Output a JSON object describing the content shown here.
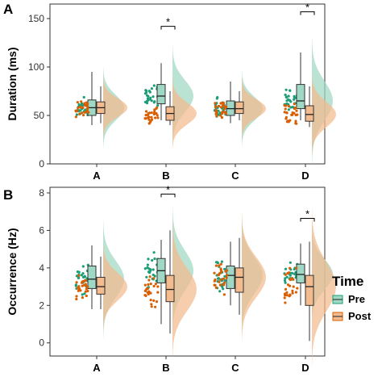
{
  "figure": {
    "legend": {
      "title": "Time",
      "items": [
        {
          "label": "Pre",
          "color": "#1b9e77"
        },
        {
          "label": "Post",
          "color": "#d95f02"
        }
      ]
    }
  },
  "chart_data": [
    {
      "panel": "A",
      "type": "raincloud",
      "ylabel": "Duration (ms)",
      "categories": [
        "A",
        "B",
        "C",
        "D"
      ],
      "yticks": [
        0,
        50,
        100,
        150
      ],
      "ylim": [
        0,
        165
      ],
      "grid": false,
      "significance": [
        {
          "category": "B",
          "label": "*",
          "y": 147
        },
        {
          "category": "D",
          "label": "*",
          "y": 162
        }
      ],
      "series": [
        {
          "name": "Pre",
          "box": [
            {
              "category": "A",
              "min": 40,
              "q1": 50,
              "median": 58,
              "q3": 66,
              "max": 95
            },
            {
              "category": "B",
              "min": 45,
              "q1": 62,
              "median": 70,
              "q3": 82,
              "max": 104
            },
            {
              "category": "C",
              "min": 42,
              "q1": 50,
              "median": 57,
              "q3": 65,
              "max": 85
            },
            {
              "category": "D",
              "min": 45,
              "q1": 57,
              "median": 65,
              "q3": 82,
              "max": 115
            }
          ]
        },
        {
          "name": "Post",
          "box": [
            {
              "category": "A",
              "min": 42,
              "q1": 52,
              "median": 58,
              "q3": 64,
              "max": 80
            },
            {
              "category": "B",
              "min": 40,
              "q1": 45,
              "median": 52,
              "q3": 59,
              "max": 75
            },
            {
              "category": "C",
              "min": 45,
              "q1": 52,
              "median": 57,
              "q3": 64,
              "max": 75
            },
            {
              "category": "D",
              "min": 38,
              "q1": 44,
              "median": 51,
              "q3": 60,
              "max": 80
            }
          ]
        }
      ]
    },
    {
      "panel": "B",
      "type": "raincloud",
      "ylabel": "Occurrence (Hz)",
      "categories": [
        "A",
        "B",
        "C",
        "D"
      ],
      "yticks": [
        0,
        2,
        4,
        6,
        8
      ],
      "ylim": [
        -0.7,
        8.3
      ],
      "grid": false,
      "significance": [
        {
          "category": "B",
          "label": "*",
          "y": 8.2
        },
        {
          "category": "D",
          "label": "*",
          "y": 6.9
        }
      ],
      "series": [
        {
          "name": "Pre",
          "box": [
            {
              "category": "A",
              "min": 1.8,
              "q1": 2.9,
              "median": 3.4,
              "q3": 4.1,
              "max": 5.2
            },
            {
              "category": "B",
              "min": 1.0,
              "q1": 3.2,
              "median": 3.85,
              "q3": 4.5,
              "max": 5.5
            },
            {
              "category": "C",
              "min": 2.0,
              "q1": 2.9,
              "median": 3.6,
              "q3": 4.1,
              "max": 5.4
            },
            {
              "category": "D",
              "min": 2.0,
              "q1": 3.2,
              "median": 3.65,
              "q3": 4.2,
              "max": 5.3
            }
          ]
        },
        {
          "name": "Post",
          "box": [
            {
              "category": "A",
              "min": 1.8,
              "q1": 2.6,
              "median": 3.0,
              "q3": 3.5,
              "max": 4.6
            },
            {
              "category": "B",
              "min": 0.5,
              "q1": 2.2,
              "median": 2.85,
              "q3": 3.6,
              "max": 6.0
            },
            {
              "category": "C",
              "min": 1.5,
              "q1": 2.7,
              "median": 3.5,
              "q3": 4.0,
              "max": 5.6
            },
            {
              "category": "D",
              "min": 0.1,
              "q1": 2.0,
              "median": 3.0,
              "q3": 3.6,
              "max": 5.4
            }
          ]
        }
      ]
    }
  ]
}
